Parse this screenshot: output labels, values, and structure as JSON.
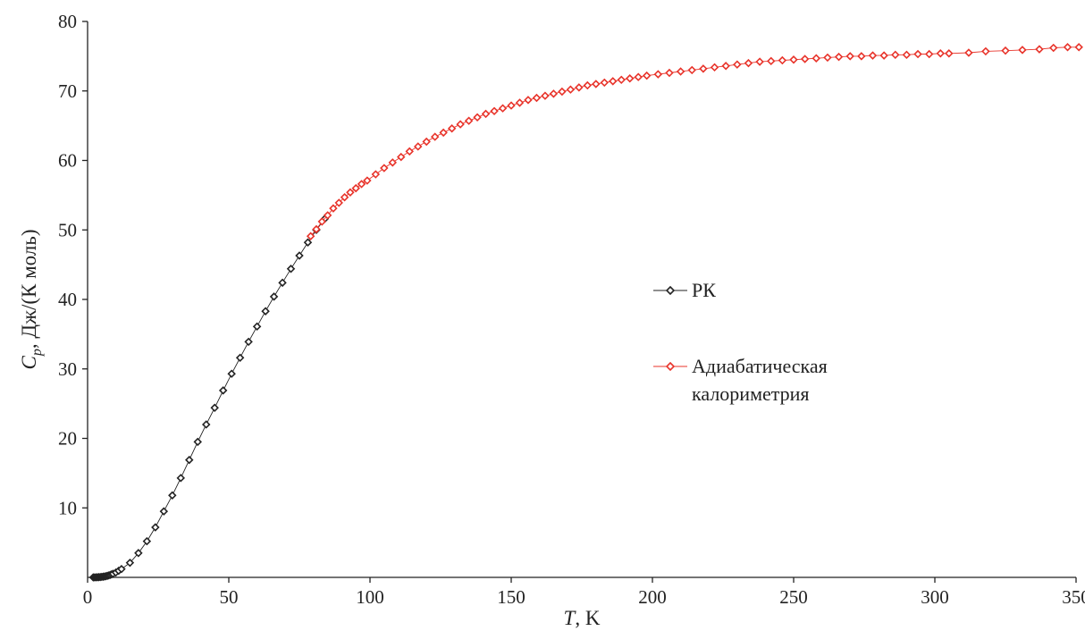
{
  "chart_data": {
    "type": "scatter",
    "xlabel": {
      "var": "T",
      "unit": ", K"
    },
    "ylabel": {
      "var": "C",
      "sub": "p",
      "unit": ", Дж/(К моль)"
    },
    "xlim": [
      0,
      350
    ],
    "ylim": [
      0,
      80
    ],
    "xticks": [
      "0",
      "50",
      "100",
      "150",
      "200",
      "250",
      "300",
      "350"
    ],
    "yticks": [
      "10",
      "20",
      "30",
      "40",
      "50",
      "60",
      "70",
      "80"
    ],
    "grid": false,
    "legend_position": "center-right",
    "colors": {
      "rk": "#222222",
      "adiabatic": "#e8332a",
      "axis": "#222222"
    },
    "series": [
      {
        "name": "РК",
        "legend_lines": [
          "РК"
        ],
        "marker": "diamond-open",
        "color": "#222222",
        "points": [
          [
            2,
            0.0
          ],
          [
            2.5,
            0.0
          ],
          [
            3,
            0.01
          ],
          [
            3.5,
            0.02
          ],
          [
            4,
            0.03
          ],
          [
            4.5,
            0.05
          ],
          [
            5,
            0.07
          ],
          [
            5.5,
            0.1
          ],
          [
            6,
            0.13
          ],
          [
            6.5,
            0.17
          ],
          [
            7,
            0.22
          ],
          [
            7.5,
            0.28
          ],
          [
            8,
            0.35
          ],
          [
            8.5,
            0.43
          ],
          [
            9,
            0.52
          ],
          [
            10,
            0.7
          ],
          [
            11,
            0.95
          ],
          [
            12,
            1.2
          ],
          [
            15,
            2.1
          ],
          [
            18,
            3.5
          ],
          [
            21,
            5.2
          ],
          [
            24,
            7.2
          ],
          [
            27,
            9.5
          ],
          [
            30,
            11.8
          ],
          [
            33,
            14.3
          ],
          [
            36,
            16.9
          ],
          [
            39,
            19.5
          ],
          [
            42,
            22.0
          ],
          [
            45,
            24.4
          ],
          [
            48,
            26.9
          ],
          [
            51,
            29.3
          ],
          [
            54,
            31.6
          ],
          [
            57,
            33.9
          ],
          [
            60,
            36.1
          ],
          [
            63,
            38.3
          ],
          [
            66,
            40.4
          ],
          [
            69,
            42.4
          ],
          [
            72,
            44.4
          ],
          [
            75,
            46.3
          ],
          [
            78,
            48.2
          ],
          [
            81,
            50.0
          ],
          [
            84,
            51.6
          ]
        ]
      },
      {
        "name": "Адиабатическая калориметрия",
        "legend_lines": [
          "Адиабатическая",
          "калориметрия"
        ],
        "marker": "diamond-open",
        "color": "#e8332a",
        "points": [
          [
            79,
            49.1
          ],
          [
            81,
            50.1
          ],
          [
            83,
            51.2
          ],
          [
            85,
            52.1
          ],
          [
            87,
            53.1
          ],
          [
            89,
            53.9
          ],
          [
            91,
            54.7
          ],
          [
            93,
            55.4
          ],
          [
            95,
            56.0
          ],
          [
            97,
            56.6
          ],
          [
            99,
            57.1
          ],
          [
            102,
            58.0
          ],
          [
            105,
            58.9
          ],
          [
            108,
            59.7
          ],
          [
            111,
            60.5
          ],
          [
            114,
            61.3
          ],
          [
            117,
            62.0
          ],
          [
            120,
            62.7
          ],
          [
            123,
            63.4
          ],
          [
            126,
            64.0
          ],
          [
            129,
            64.6
          ],
          [
            132,
            65.2
          ],
          [
            135,
            65.7
          ],
          [
            138,
            66.2
          ],
          [
            141,
            66.7
          ],
          [
            144,
            67.1
          ],
          [
            147,
            67.5
          ],
          [
            150,
            67.9
          ],
          [
            153,
            68.3
          ],
          [
            156,
            68.7
          ],
          [
            159,
            69.0
          ],
          [
            162,
            69.3
          ],
          [
            165,
            69.6
          ],
          [
            168,
            69.9
          ],
          [
            171,
            70.2
          ],
          [
            174,
            70.5
          ],
          [
            177,
            70.8
          ],
          [
            180,
            71.0
          ],
          [
            183,
            71.2
          ],
          [
            186,
            71.4
          ],
          [
            189,
            71.6
          ],
          [
            192,
            71.8
          ],
          [
            195,
            72.0
          ],
          [
            198,
            72.2
          ],
          [
            202,
            72.4
          ],
          [
            206,
            72.6
          ],
          [
            210,
            72.8
          ],
          [
            214,
            73.0
          ],
          [
            218,
            73.2
          ],
          [
            222,
            73.4
          ],
          [
            226,
            73.6
          ],
          [
            230,
            73.8
          ],
          [
            234,
            74.0
          ],
          [
            238,
            74.2
          ],
          [
            242,
            74.3
          ],
          [
            246,
            74.4
          ],
          [
            250,
            74.5
          ],
          [
            254,
            74.6
          ],
          [
            258,
            74.7
          ],
          [
            262,
            74.8
          ],
          [
            266,
            74.9
          ],
          [
            270,
            75.0
          ],
          [
            274,
            75.0
          ],
          [
            278,
            75.1
          ],
          [
            282,
            75.1
          ],
          [
            286,
            75.2
          ],
          [
            290,
            75.2
          ],
          [
            294,
            75.3
          ],
          [
            298,
            75.3
          ],
          [
            302,
            75.4
          ],
          [
            305,
            75.4
          ],
          [
            312,
            75.5
          ],
          [
            318,
            75.7
          ],
          [
            325,
            75.8
          ],
          [
            331,
            75.9
          ],
          [
            337,
            76.0
          ],
          [
            342,
            76.2
          ],
          [
            347,
            76.3
          ],
          [
            351,
            76.3
          ]
        ]
      }
    ]
  }
}
